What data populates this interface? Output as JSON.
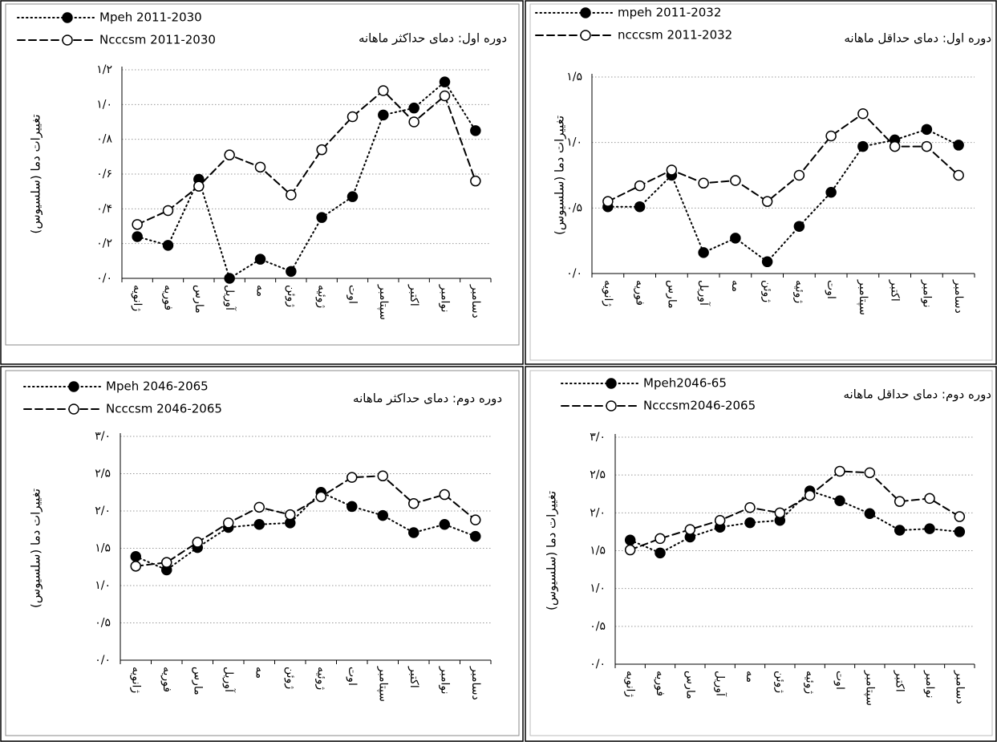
{
  "chart_data": [
    {
      "type": "line",
      "title": "دوره اول: دمای حداکثر ماهانه",
      "y_label": "تغییرات دما (سلسیوس)",
      "legend": "upper left",
      "grid": true,
      "categories": [
        "ژانویه",
        "فوریه",
        "مارس",
        "آوریل",
        "مه",
        "ژوئن",
        "ژوئیه",
        "اوت",
        "سپتامبر",
        "اکتبر",
        "نوامبر",
        "دسامبر"
      ],
      "ylim": [
        0,
        1.2
      ],
      "yticks": [
        {
          "value": 0,
          "label": "۰/۰"
        },
        {
          "value": 0.2,
          "label": "۰/۲"
        },
        {
          "value": 0.4,
          "label": "۰/۴"
        },
        {
          "value": 0.6,
          "label": "۰/۶"
        },
        {
          "value": 0.8,
          "label": "۰/۸"
        },
        {
          "value": 1.0,
          "label": "۱/۰"
        },
        {
          "value": 1.2,
          "label": "۱/۲"
        }
      ],
      "series": [
        {
          "name": "Mpeh 2011-2030",
          "color": "#000000",
          "line_style": "dotted",
          "marker": "filled",
          "values": [
            0.24,
            0.19,
            0.57,
            0,
            0.11,
            0.04,
            0.35,
            0.47,
            0.94,
            0.98,
            1.13,
            0.85
          ]
        },
        {
          "name": "Ncccsm 2011-2030",
          "color": "#000000",
          "line_style": "dashed",
          "marker": "open",
          "values": [
            0.31,
            0.39,
            0.53,
            0.71,
            0.64,
            0.48,
            0.74,
            0.93,
            1.08,
            0.9,
            1.05,
            0.56
          ]
        }
      ]
    },
    {
      "type": "line",
      "title": "دوره اول: دمای حداقل ماهانه",
      "y_label": "تغییرات دما (سلسیوس)",
      "legend": "upper left",
      "grid": true,
      "categories": [
        "ژانویه",
        "فوریه",
        "مارس",
        "آوریل",
        "مه",
        "ژوئن",
        "ژوئیه",
        "اوت",
        "سپتامبر",
        "اکتبر",
        "نوامبر",
        "دسامبر"
      ],
      "ylim": [
        0,
        1.5
      ],
      "yticks": [
        {
          "value": 0,
          "label": "۰/۰"
        },
        {
          "value": 0.5,
          "label": "۰/۵"
        },
        {
          "value": 1.0,
          "label": "۱/۰"
        },
        {
          "value": 1.5,
          "label": "۱/۵"
        }
      ],
      "series": [
        {
          "name": "mpeh 2011-2032",
          "color": "#000000",
          "line_style": "dotted",
          "marker": "filled",
          "values": [
            0.51,
            0.51,
            0.75,
            0.16,
            0.27,
            0.09,
            0.36,
            0.62,
            0.97,
            1.02,
            1.1,
            0.98
          ]
        },
        {
          "name": "ncccsm 2011-2032",
          "color": "#000000",
          "line_style": "dashed",
          "marker": "open",
          "values": [
            0.55,
            0.67,
            0.79,
            0.69,
            0.71,
            0.55,
            0.75,
            1.05,
            1.22,
            0.97,
            0.97,
            0.75
          ]
        }
      ]
    },
    {
      "type": "line",
      "title": "دوره دوم: دمای حداکثر ماهانه",
      "y_label": "تغییرات دما (سلسیوس)",
      "legend": "upper left",
      "grid": true,
      "categories": [
        "ژانویه",
        "فوریه",
        "مارس",
        "آوریل",
        "مه",
        "ژوئن",
        "ژوئیه",
        "اوت",
        "سپتامبر",
        "اکتبر",
        "نوامبر",
        "دسامبر"
      ],
      "ylim": [
        0,
        3.0
      ],
      "yticks": [
        {
          "value": 0,
          "label": "۰/۰"
        },
        {
          "value": 0.5,
          "label": "۰/۵"
        },
        {
          "value": 1.0,
          "label": "۱/۰"
        },
        {
          "value": 1.5,
          "label": "۱/۵"
        },
        {
          "value": 2.0,
          "label": "۲/۰"
        },
        {
          "value": 2.5,
          "label": "۲/۵"
        },
        {
          "value": 3.0,
          "label": "۳/۰"
        }
      ],
      "series": [
        {
          "name": "Mpeh 2046-2065",
          "color": "#000000",
          "line_style": "dotted",
          "marker": "filled",
          "values": [
            1.39,
            1.21,
            1.51,
            1.78,
            1.82,
            1.84,
            2.25,
            2.06,
            1.94,
            1.71,
            1.82,
            1.66
          ]
        },
        {
          "name": "Ncccsm 2046-2065",
          "color": "#000000",
          "line_style": "dashed",
          "marker": "open",
          "values": [
            1.26,
            1.31,
            1.58,
            1.84,
            2.05,
            1.95,
            2.19,
            2.45,
            2.47,
            2.1,
            2.22,
            1.88
          ]
        }
      ]
    },
    {
      "type": "line",
      "title": "دوره دوم: دمای حداقل ماهانه",
      "y_label": "تغییرات دما (سلسیوس)",
      "legend": "upper left",
      "grid": true,
      "categories": [
        "ژانویه",
        "فوریه",
        "مارس",
        "آوریل",
        "مه",
        "ژوئن",
        "ژوئیه",
        "اوت",
        "سپتامبر",
        "اکتبر",
        "نوامبر",
        "دسامبر"
      ],
      "ylim": [
        0,
        3.0
      ],
      "yticks": [
        {
          "value": 0,
          "label": "۰/۰"
        },
        {
          "value": 0.5,
          "label": "۰/۵"
        },
        {
          "value": 1.0,
          "label": "۱/۰"
        },
        {
          "value": 1.5,
          "label": "۱/۵"
        },
        {
          "value": 2.0,
          "label": "۲/۰"
        },
        {
          "value": 2.5,
          "label": "۲/۵"
        },
        {
          "value": 3.0,
          "label": "۳/۰"
        }
      ],
      "series": [
        {
          "name": "Mpeh2046-65",
          "color": "#000000",
          "line_style": "dotted",
          "marker": "filled",
          "values": [
            1.64,
            1.47,
            1.68,
            1.81,
            1.87,
            1.9,
            2.29,
            2.16,
            1.99,
            1.77,
            1.79,
            1.75
          ]
        },
        {
          "name": "Ncccsm2046-2065",
          "color": "#000000",
          "line_style": "dashed",
          "marker": "open",
          "values": [
            1.51,
            1.66,
            1.78,
            1.9,
            2.07,
            2.0,
            2.23,
            2.55,
            2.53,
            2.15,
            2.19,
            1.95
          ]
        }
      ]
    }
  ]
}
